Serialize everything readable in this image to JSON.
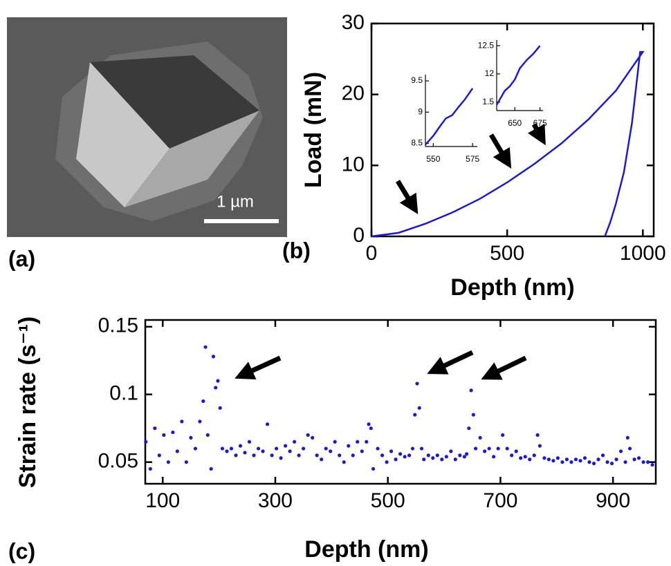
{
  "panel_labels": [
    "(a)",
    "(b)",
    "(c)"
  ],
  "image": {
    "scale_bar": "1 µm"
  },
  "chart_data": [
    {
      "type": "line",
      "xlabel": "Depth (nm)",
      "ylabel": "Load (mN)",
      "x": [
        0,
        100,
        200,
        300,
        400,
        500,
        600,
        700,
        800,
        900,
        1000,
        990,
        960,
        930,
        900,
        880,
        860
      ],
      "series": [
        {
          "color": "#1a1ad6",
          "values": [
            0,
            0.5,
            1.8,
            3.4,
            5.3,
            7.6,
            10.2,
            13.1,
            16.5,
            20.5,
            26,
            26,
            16,
            9,
            4.5,
            2,
            0
          ]
        }
      ],
      "xlim": [
        0,
        1040
      ],
      "ylim": [
        0,
        30
      ],
      "xticks": [
        0,
        500,
        1000
      ],
      "yticks": [
        0,
        10,
        20,
        30
      ]
    },
    {
      "type": "line",
      "x": [
        545,
        550,
        555,
        558,
        562,
        566,
        570,
        575
      ],
      "series": [
        {
          "color": "#1a1ad6",
          "values": [
            8.48,
            8.62,
            8.8,
            8.9,
            8.95,
            9.08,
            9.2,
            9.38
          ]
        }
      ],
      "xlim": [
        545,
        578
      ],
      "ylim": [
        8.45,
        9.6
      ],
      "xticks": [
        550,
        575
      ],
      "yticks": [
        8.5,
        9,
        9.5
      ]
    },
    {
      "type": "line",
      "x": [
        632,
        640,
        645,
        650,
        655,
        662,
        668,
        675
      ],
      "series": [
        {
          "color": "#1a1ad6",
          "values": [
            11.45,
            11.7,
            11.78,
            11.9,
            12.1,
            12.25,
            12.35,
            12.5
          ]
        }
      ],
      "xlim": [
        632,
        678
      ],
      "ylim": [
        11.35,
        12.6
      ],
      "xticks": [
        650,
        675
      ],
      "yticks": [
        {
          "value": 11.5,
          "label": "1.5"
        },
        12,
        12.5
      ]
    },
    {
      "type": "scatter",
      "xlabel": "Depth (nm)",
      "ylabel": "Strain rate (s⁻¹)",
      "x": [
        70,
        78,
        86,
        94,
        102,
        110,
        118,
        126,
        134,
        142,
        150,
        158,
        166,
        172,
        176,
        180,
        186,
        190,
        194,
        198,
        202,
        206,
        214,
        222,
        230,
        238,
        246,
        254,
        262,
        270,
        278,
        286,
        294,
        302,
        310,
        318,
        326,
        334,
        342,
        350,
        358,
        366,
        374,
        382,
        390,
        398,
        406,
        414,
        422,
        430,
        438,
        446,
        454,
        462,
        466,
        470,
        474,
        482,
        490,
        498,
        506,
        514,
        522,
        530,
        538,
        544,
        548,
        552,
        556,
        560,
        564,
        572,
        580,
        588,
        596,
        604,
        612,
        620,
        628,
        636,
        640,
        644,
        648,
        652,
        656,
        664,
        672,
        680,
        688,
        696,
        704,
        712,
        720,
        728,
        736,
        744,
        752,
        760,
        766,
        770,
        778,
        786,
        794,
        802,
        810,
        818,
        826,
        834,
        842,
        850,
        858,
        866,
        874,
        882,
        890,
        898,
        906,
        914,
        922,
        926,
        930,
        938,
        946,
        954,
        962,
        970
      ],
      "series": [
        {
          "color": "#1a1ad6",
          "values": [
            0.065,
            0.045,
            0.075,
            0.055,
            0.07,
            0.05,
            0.072,
            0.058,
            0.08,
            0.05,
            0.068,
            0.06,
            0.08,
            0.095,
            0.135,
            0.07,
            0.045,
            0.128,
            0.105,
            0.11,
            0.09,
            0.06,
            0.058,
            0.06,
            0.055,
            0.062,
            0.057,
            0.065,
            0.055,
            0.06,
            0.058,
            0.078,
            0.055,
            0.06,
            0.053,
            0.062,
            0.058,
            0.065,
            0.055,
            0.06,
            0.07,
            0.068,
            0.055,
            0.052,
            0.06,
            0.058,
            0.065,
            0.055,
            0.05,
            0.062,
            0.055,
            0.065,
            0.058,
            0.065,
            0.078,
            0.075,
            0.045,
            0.06,
            0.055,
            0.05,
            0.058,
            0.052,
            0.056,
            0.054,
            0.055,
            0.06,
            0.085,
            0.108,
            0.09,
            0.06,
            0.052,
            0.055,
            0.053,
            0.055,
            0.052,
            0.054,
            0.058,
            0.052,
            0.055,
            0.054,
            0.056,
            0.075,
            0.103,
            0.085,
            0.06,
            0.068,
            0.058,
            0.06,
            0.054,
            0.06,
            0.07,
            0.06,
            0.055,
            0.058,
            0.053,
            0.054,
            0.052,
            0.055,
            0.07,
            0.062,
            0.053,
            0.052,
            0.051,
            0.053,
            0.05,
            0.052,
            0.05,
            0.052,
            0.051,
            0.053,
            0.05,
            0.049,
            0.052,
            0.055,
            0.05,
            0.049,
            0.052,
            0.058,
            0.05,
            0.068,
            0.06,
            0.052,
            0.053,
            0.05,
            0.05,
            0.048
          ]
        }
      ],
      "xlim": [
        69,
        976
      ],
      "ylim": [
        0.034,
        0.155
      ],
      "xticks": [
        100,
        300,
        500,
        700,
        900
      ],
      "yticks": [
        0.05,
        0.1,
        0.15
      ]
    }
  ]
}
